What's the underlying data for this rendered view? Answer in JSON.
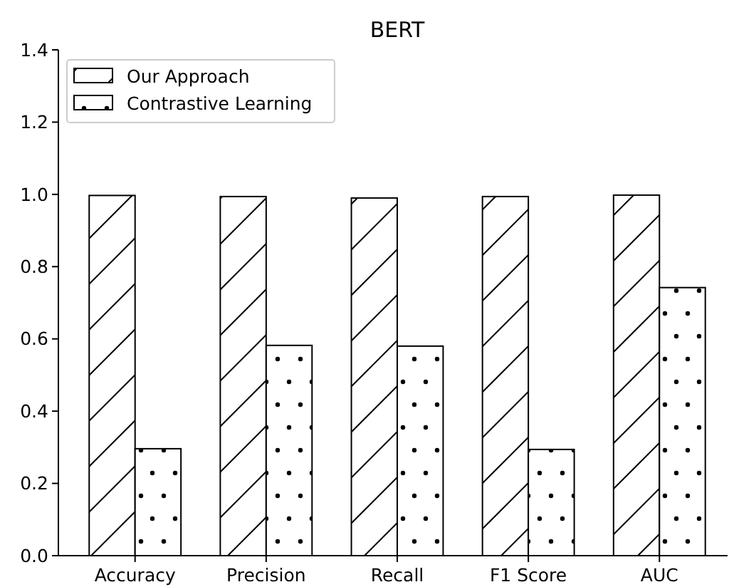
{
  "chart_data": {
    "type": "bar",
    "title": "BERT",
    "categories": [
      "Accuracy",
      "Precision",
      "Recall",
      "F1 Score",
      "AUC"
    ],
    "series": [
      {
        "name": "Our Approach",
        "color": "#000000",
        "values": [
          0.997,
          0.994,
          0.99,
          0.994,
          0.998
        ]
      },
      {
        "name": "Contrastive Learning",
        "color": "#000000",
        "values": [
          0.296,
          0.582,
          0.58,
          0.294,
          0.742
        ]
      }
    ],
    "ylim": [
      0,
      1.4
    ],
    "yticks": [
      {
        "value": 0,
        "label": "0.0"
      },
      0.2,
      0.4,
      0.6,
      0.8,
      {
        "value": 1,
        "label": "1.0"
      },
      1.2,
      1.4
    ],
    "legend": "top left",
    "grid": false
  }
}
